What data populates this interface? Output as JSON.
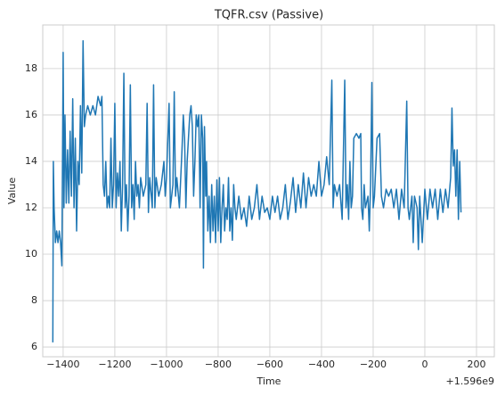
{
  "chart_data": {
    "type": "line",
    "title": "TQFR.csv (Passive)",
    "x_label": "Time",
    "y_label": "Value",
    "x_offset_text": "+1.596e9",
    "color": "#1f77b4",
    "grid": true,
    "xlim": [
      -1479,
      269
    ],
    "ylim": [
      5.58,
      19.88
    ],
    "xticks": [
      {
        "value": -1400,
        "label": "−1400"
      },
      {
        "value": -1200,
        "label": "−1200"
      },
      {
        "value": -1000,
        "label": "−1000"
      },
      {
        "value": -800,
        "label": "−800"
      },
      {
        "value": -600,
        "label": "−600"
      },
      {
        "value": -400,
        "label": "−400"
      },
      {
        "value": -200,
        "label": "−200"
      },
      0,
      200
    ],
    "yticks": [
      6,
      8,
      10,
      12,
      14,
      16,
      18
    ],
    "x": [
      -1440,
      -1438,
      -1435,
      -1430,
      -1425,
      -1420,
      -1415,
      -1410,
      -1405,
      -1400,
      -1397,
      -1393,
      -1388,
      -1383,
      -1378,
      -1373,
      -1368,
      -1363,
      -1358,
      -1353,
      -1348,
      -1343,
      -1338,
      -1333,
      -1328,
      -1323,
      -1318,
      -1313,
      -1305,
      -1295,
      -1285,
      -1275,
      -1265,
      -1255,
      -1250,
      -1245,
      -1240,
      -1235,
      -1230,
      -1225,
      -1220,
      -1215,
      -1210,
      -1205,
      -1200,
      -1195,
      -1190,
      -1185,
      -1180,
      -1175,
      -1170,
      -1165,
      -1160,
      -1155,
      -1150,
      -1145,
      -1140,
      -1135,
      -1130,
      -1125,
      -1120,
      -1115,
      -1110,
      -1105,
      -1100,
      -1090,
      -1080,
      -1075,
      -1070,
      -1065,
      -1055,
      -1050,
      -1045,
      -1040,
      -1030,
      -1020,
      -1010,
      -1005,
      -1000,
      -990,
      -985,
      -975,
      -970,
      -965,
      -960,
      -950,
      -940,
      -935,
      -930,
      -925,
      -920,
      -910,
      -905,
      -900,
      -895,
      -890,
      -885,
      -880,
      -875,
      -870,
      -865,
      -860,
      -857,
      -853,
      -848,
      -845,
      -840,
      -835,
      -830,
      -825,
      -820,
      -815,
      -810,
      -805,
      -800,
      -795,
      -790,
      -785,
      -780,
      -775,
      -770,
      -765,
      -760,
      -755,
      -750,
      -745,
      -740,
      -735,
      -730,
      -720,
      -710,
      -700,
      -690,
      -680,
      -670,
      -660,
      -650,
      -640,
      -630,
      -620,
      -610,
      -600,
      -590,
      -580,
      -570,
      -560,
      -550,
      -540,
      -530,
      -520,
      -510,
      -500,
      -490,
      -480,
      -470,
      -460,
      -450,
      -440,
      -430,
      -420,
      -410,
      -400,
      -390,
      -380,
      -370,
      -360,
      -355,
      -350,
      -340,
      -330,
      -320,
      -310,
      -305,
      -300,
      -295,
      -290,
      -285,
      -280,
      -275,
      -265,
      -255,
      -248,
      -245,
      -240,
      -235,
      -230,
      -220,
      -215,
      -210,
      -205,
      -200,
      -195,
      -185,
      -175,
      -168,
      -160,
      -150,
      -140,
      -130,
      -120,
      -110,
      -100,
      -90,
      -80,
      -70,
      -65,
      -60,
      -50,
      -45,
      -40,
      -30,
      -25,
      -20,
      -10,
      0,
      10,
      20,
      30,
      40,
      50,
      60,
      70,
      80,
      90,
      100,
      105,
      110,
      115,
      120,
      125,
      130,
      135,
      140
    ],
    "values": [
      6.2,
      14,
      12,
      10.5,
      11,
      10.5,
      11,
      10.5,
      9.5,
      18.7,
      12,
      16,
      12.2,
      14.5,
      12.2,
      15.3,
      12.5,
      16.7,
      12,
      15,
      11,
      14,
      13,
      16.4,
      13.5,
      19.2,
      15.5,
      16,
      16.4,
      16,
      16.4,
      16,
      16.8,
      16.4,
      16.8,
      13,
      12.5,
      14,
      12,
      12.5,
      12,
      15,
      12,
      13,
      16.5,
      12,
      13.5,
      12.5,
      14,
      11,
      13,
      17.8,
      12,
      13,
      11,
      12.5,
      17.3,
      12,
      13,
      11.5,
      14,
      12.5,
      13,
      12,
      13.3,
      12.5,
      13,
      16.5,
      11.8,
      13.3,
      12,
      17.3,
      12,
      13.3,
      12.5,
      13,
      14,
      12.5,
      13.3,
      16.5,
      12,
      13,
      17,
      12.5,
      13.3,
      12,
      14.5,
      16,
      15,
      12,
      14,
      16,
      16.4,
      15.5,
      12.5,
      14,
      16,
      15.5,
      16,
      12,
      16,
      15,
      9.4,
      15.5,
      12.5,
      14,
      11,
      12.5,
      10.5,
      13,
      11,
      12.5,
      10.5,
      13.2,
      11,
      13.3,
      10.5,
      12,
      13,
      11,
      12,
      11.5,
      13.3,
      11,
      12,
      10.6,
      13,
      12,
      11.5,
      12.5,
      11.5,
      12,
      11.2,
      12.5,
      11.5,
      12,
      13,
      11.5,
      12.5,
      11.8,
      12,
      11.5,
      12.5,
      11.8,
      12.5,
      11.5,
      12,
      13,
      11.5,
      12.3,
      13.3,
      11.8,
      13,
      12,
      13.5,
      12,
      13.3,
      12.5,
      13,
      12.5,
      14,
      12.5,
      13,
      14.2,
      13,
      17.5,
      12,
      13,
      12.5,
      13,
      11.5,
      17.5,
      12,
      13,
      11.5,
      14,
      12,
      12.5,
      15,
      15.2,
      15,
      15.2,
      12,
      11.5,
      13,
      12,
      12.5,
      11,
      13,
      17.4,
      12,
      12.5,
      15,
      15.2,
      12.5,
      12,
      12.8,
      12.5,
      12.8,
      12,
      12.8,
      11.5,
      12.8,
      12,
      16.6,
      12,
      11.5,
      12.5,
      10.5,
      12.5,
      12,
      10.2,
      12.5,
      10.5,
      12.8,
      11.5,
      12.8,
      12,
      12.8,
      11.5,
      12.8,
      11.8,
      12.8,
      12,
      13.3,
      16.3,
      13.8,
      14.5,
      12.5,
      14.5,
      11.5,
      14,
      11.8
    ]
  }
}
